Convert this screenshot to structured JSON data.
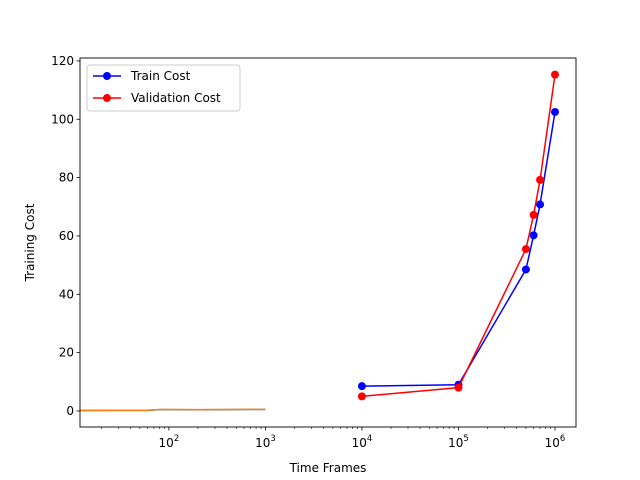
{
  "chart_data": {
    "type": "line",
    "title": "",
    "xlabel": "Time Frames",
    "ylabel": "Training Cost",
    "xscale": "log",
    "xlim": [
      12,
      1650000
    ],
    "ylim": [
      -5.5,
      121
    ],
    "grid": false,
    "legend_position": "top-left",
    "x_ticks": [
      {
        "value": 100,
        "mant": "10",
        "exp": "2"
      },
      {
        "value": 1000,
        "mant": "10",
        "exp": "3"
      },
      {
        "value": 10000,
        "mant": "10",
        "exp": "4"
      },
      {
        "value": 100000,
        "mant": "10",
        "exp": "5"
      },
      {
        "value": 1000000,
        "mant": "10",
        "exp": "6"
      }
    ],
    "y_ticks": [
      {
        "value": 0,
        "label": "0"
      },
      {
        "value": 20,
        "label": "20"
      },
      {
        "value": 40,
        "label": "40"
      },
      {
        "value": 60,
        "label": "60"
      },
      {
        "value": 80,
        "label": "80"
      },
      {
        "value": 100,
        "label": "100"
      },
      {
        "value": 120,
        "label": "120"
      }
    ],
    "series": [
      {
        "name": "Train Cost",
        "color": "#0000ff",
        "marker": "circle",
        "x": [
          10000,
          100000,
          500000,
          600000,
          700000,
          1000000
        ],
        "y": [
          8.5,
          9.0,
          48.5,
          60.2,
          70.8,
          102.5
        ]
      },
      {
        "name": "Validation Cost",
        "color": "#ff0000",
        "marker": "circle",
        "x": [
          10000,
          100000,
          500000,
          600000,
          700000,
          1000000
        ],
        "y": [
          5.0,
          8.0,
          55.5,
          67.2,
          79.2,
          115.3
        ]
      }
    ],
    "lines_unlabeled": [
      {
        "color": "#1f77b4",
        "marker": "none",
        "x": [
          1,
          10,
          30,
          60,
          80,
          100,
          200,
          400,
          700,
          1000
        ],
        "y": [
          0.1,
          0.15,
          0.2,
          0.2,
          0.45,
          0.45,
          0.4,
          0.45,
          0.5,
          0.5
        ]
      },
      {
        "color": "#ff7f0e",
        "marker": "none",
        "x": [
          1,
          10,
          30,
          60,
          80,
          100,
          200,
          400,
          700,
          1000
        ],
        "y": [
          0.15,
          0.2,
          0.25,
          0.25,
          0.5,
          0.5,
          0.45,
          0.5,
          0.55,
          0.55
        ]
      }
    ]
  }
}
